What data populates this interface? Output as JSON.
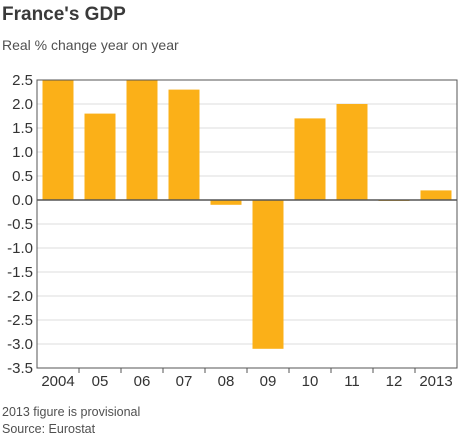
{
  "chart_data": {
    "type": "bar",
    "title": "France's GDP",
    "subtitle": "Real % change year on year",
    "categories": [
      "2004",
      "05",
      "06",
      "07",
      "08",
      "09",
      "10",
      "11",
      "12",
      "2013"
    ],
    "values": [
      2.5,
      1.8,
      2.5,
      2.3,
      -0.1,
      -3.1,
      1.7,
      2.0,
      0.0,
      0.2
    ],
    "ylim": [
      -3.5,
      2.5
    ],
    "yticks": [
      "2.5",
      "2.0",
      "1.5",
      "1.0",
      "0.5",
      "0.0",
      "-0.5",
      "-1.0",
      "-1.5",
      "-2.0",
      "-2.5",
      "-3.0",
      "-3.5"
    ],
    "xlabel": "",
    "ylabel": "",
    "grid": "horizontal",
    "bar_color": "#fbb018",
    "notes": [
      "2013 figure is provisional",
      "Source: Eurostat"
    ]
  }
}
